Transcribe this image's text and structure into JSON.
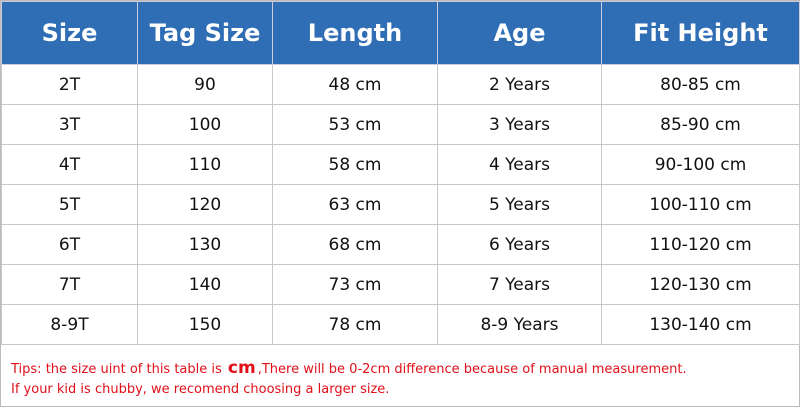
{
  "table": {
    "header": [
      "Size",
      "Tag Size",
      "Length",
      "Age",
      "Fit Height"
    ],
    "rows": [
      [
        "2T",
        "90",
        "48 cm",
        "2 Years",
        "80-85 cm"
      ],
      [
        "3T",
        "100",
        "53 cm",
        "3 Years",
        "85-90 cm"
      ],
      [
        "4T",
        "110",
        "58 cm",
        "4 Years",
        "90-100 cm"
      ],
      [
        "5T",
        "120",
        "63 cm",
        "5 Years",
        "100-110 cm"
      ],
      [
        "6T",
        "130",
        "68 cm",
        "6 Years",
        "110-120 cm"
      ],
      [
        "7T",
        "140",
        "73 cm",
        "7 Years",
        "120-130 cm"
      ],
      [
        "8-9T",
        "150",
        "78 cm",
        "8-9 Years",
        "130-140 cm"
      ]
    ]
  },
  "tips": {
    "line1": {
      "before": "Tips: the size uint of this table is ",
      "emphasis": "cm",
      "after": ",There will be 0-2cm difference because of manual measurement."
    },
    "line2": "If your kid is chubby, we recomend choosing a larger size."
  }
}
